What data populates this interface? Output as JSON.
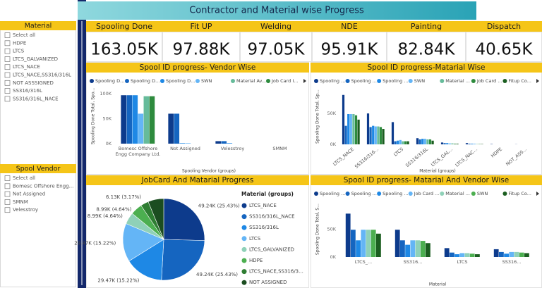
{
  "header": {
    "title": "Contractor and Material wise Progress"
  },
  "slicers": [
    {
      "title": "Material",
      "items": [
        "Select all",
        "HDPE",
        "LTCS",
        "LTCS_GALVANIZED",
        "LTCS_NACE",
        "LTCS_NACE,SS316/316L",
        "NOT ASSSIGNED",
        "SS316/316L",
        "SS316/316L_NACE"
      ]
    },
    {
      "title": "Spool Vendor",
      "items": [
        "Select all",
        "Bomesc Offshore Engg...",
        "Not Assigned",
        "SMNM",
        "Velesstroy"
      ]
    }
  ],
  "kpis": [
    {
      "label": "Spooling Done",
      "value": "163.05K"
    },
    {
      "label": "Fit UP",
      "value": "97.88K"
    },
    {
      "label": "Welding",
      "value": "97.05K"
    },
    {
      "label": "NDE",
      "value": "95.91K"
    },
    {
      "label": "Painting",
      "value": "82.84K"
    },
    {
      "label": "Dispatch",
      "value": "40.65K"
    }
  ],
  "chart_data": [
    {
      "type": "bar",
      "title": "Spool ID progress- Vendor Wise",
      "x_label": "Spooling Vendor (groups)",
      "y_label": "Spooling Done Total, Spo...",
      "legend": "top",
      "categories": [
        "Bomesc Offshore Engg Company Ltd.",
        "Not Assigned",
        "Velesstroy",
        "SMNM"
      ],
      "series": [
        {
          "name": "Spooling D...",
          "color": "#0d3b8c",
          "values": [
            97000,
            60000,
            5000,
            0
          ]
        },
        {
          "name": "Spooling D...",
          "color": "#1565c0",
          "values": [
            97000,
            60000,
            5000,
            0
          ]
        },
        {
          "name": "Spooling D...",
          "color": "#1e88e5",
          "values": [
            97000,
            1000,
            1000,
            0
          ]
        },
        {
          "name": "SWN",
          "color": "#64b5f6",
          "values": [
            60000,
            1000,
            0,
            0
          ]
        },
        {
          "name": "Material Av...",
          "color": "#66bb9a",
          "values": [
            95000,
            0,
            0,
            0
          ]
        },
        {
          "name": "Job Card I...",
          "color": "#2e8b3e",
          "values": [
            95000,
            0,
            0,
            0
          ]
        }
      ],
      "ylim": [
        0,
        110000
      ],
      "yticks": [
        {
          "value": 0,
          "label": "0K"
        },
        {
          "value": 50000,
          "label": "50K"
        },
        {
          "value": 100000,
          "label": "100K"
        }
      ],
      "grid": false
    },
    {
      "type": "bar",
      "title": "Spool ID progress-Matarial Wise",
      "x_label": "Material (groups)",
      "y_label": "Spooling Done Total, Sp...",
      "legend": "top",
      "categories": [
        "LTCS_NACE",
        "SS316/316...",
        "LTCS",
        "SS316/316L",
        "LTCS_GAL...",
        "LTCS_NAC...",
        "HDPE",
        "NOT_ASS..."
      ],
      "series": [
        {
          "name": "Spooling ...",
          "color": "#0d3b8c",
          "values": [
            80000,
            50000,
            36000,
            10000,
            3000,
            2000,
            500,
            200
          ]
        },
        {
          "name": "Spooling ...",
          "color": "#1565c0",
          "values": [
            30000,
            28000,
            5000,
            8000,
            2000,
            1000,
            0,
            0
          ]
        },
        {
          "name": "Spooling ...",
          "color": "#1e88e5",
          "values": [
            49000,
            30000,
            6000,
            9000,
            2000,
            1000,
            0,
            0
          ]
        },
        {
          "name": "SWN",
          "color": "#64b5f6",
          "values": [
            49000,
            29000,
            7000,
            9000,
            1500,
            1000,
            0,
            0
          ]
        },
        {
          "name": "Material ...",
          "color": "#66bb9a",
          "values": [
            49000,
            29000,
            5000,
            8000,
            1500,
            500,
            0,
            0
          ]
        },
        {
          "name": "Job Card ...",
          "color": "#2e8b3e",
          "values": [
            47000,
            28000,
            5000,
            8000,
            1000,
            500,
            0,
            0
          ]
        },
        {
          "name": "Fitup Co...",
          "color": "#1b5e20",
          "values": [
            40000,
            25000,
            5000,
            6000,
            1000,
            500,
            0,
            0
          ]
        }
      ],
      "ylim": [
        0,
        90000
      ],
      "yticks": [
        {
          "value": 0,
          "label": "0K"
        },
        {
          "value": 50000,
          "label": "50K"
        }
      ],
      "grid": false
    },
    {
      "type": "pie",
      "title": "JobCard And Matarial Progress",
      "legend_title": "Material (groups)",
      "legend": "right",
      "categories": [
        "LTCS_NACE",
        "SS316/316L_NACE",
        "SS316/316L",
        "LTCS",
        "LTCS_GALVANIZED",
        "HDPE",
        "LTCS_NACE,SS316/3...",
        "NOT ASSIGNED"
      ],
      "values": [
        49240,
        49240,
        29470,
        29470,
        8990,
        8990,
        6130,
        12000
      ],
      "value_labels": [
        "49.24K (25.43%)",
        "49.24K (25.43%)",
        "29.47K (15.22%)",
        "29.47K (15.22%)",
        "8.99K (4.64%)",
        "8.99K (4.64%)",
        "6.13K (3.17%)",
        null
      ],
      "colors": [
        "#0d3b8c",
        "#1565c0",
        "#1e88e5",
        "#64b5f6",
        "#8fd1b8",
        "#4caf50",
        "#2e7d32",
        "#1b4d20"
      ]
    },
    {
      "type": "bar",
      "title": "Spool ID progress- Matarial And Vendor Wise",
      "x_label": "Material",
      "y_label": "Spooling Done Total, S...",
      "legend": "top",
      "categories": [
        "LTCS_...",
        "SS316...",
        "LTCS",
        "SS316..."
      ],
      "series": [
        {
          "name": "Spooling ...",
          "color": "#0d3b8c",
          "values": [
            78000,
            49000,
            16000,
            14000
          ]
        },
        {
          "name": "Spooling ...",
          "color": "#1565c0",
          "values": [
            49000,
            30000,
            8000,
            9000
          ]
        },
        {
          "name": "Spooling ...",
          "color": "#1e88e5",
          "values": [
            30000,
            22000,
            5000,
            6000
          ]
        },
        {
          "name": "Job Card ...",
          "color": "#64b5f6",
          "values": [
            49000,
            30000,
            7000,
            9000
          ]
        },
        {
          "name": "Material ...",
          "color": "#8fd1b8",
          "values": [
            49000,
            30000,
            7000,
            9000
          ]
        },
        {
          "name": "SWN",
          "color": "#4caf50",
          "values": [
            49000,
            29000,
            6000,
            8000
          ]
        },
        {
          "name": "Fitup Co...",
          "color": "#1b5e20",
          "values": [
            42000,
            25000,
            5000,
            7000
          ]
        }
      ],
      "ylim": [
        0,
        100000
      ],
      "yticks": [
        {
          "value": 0,
          "label": "0K"
        },
        {
          "value": 50000,
          "label": "50K"
        }
      ],
      "grid": false
    }
  ]
}
